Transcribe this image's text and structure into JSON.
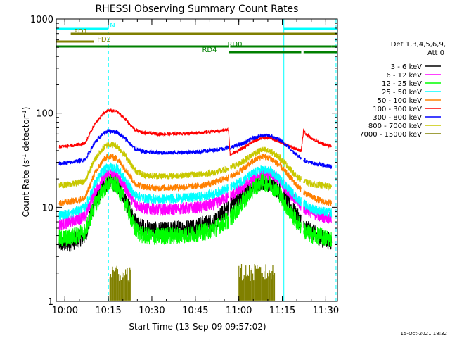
{
  "chart_data": {
    "type": "line",
    "title": "RHESSI Observing Summary Count Rates",
    "xlabel": "Start Time (13-Sep-09 09:57:02)",
    "ylabel_parts": [
      "Count Rate (s",
      "-1",
      " detector",
      "-1",
      ")"
    ],
    "y_scale": "log",
    "ylim": [
      1,
      1000
    ],
    "xlim_minutes": [
      0,
      97
    ],
    "x_ticks": [
      "10:00",
      "10:15",
      "10:30",
      "10:45",
      "11:00",
      "11:15",
      "11:30"
    ],
    "x_tick_minutes": [
      2.97,
      17.97,
      32.97,
      47.97,
      62.97,
      77.97,
      92.97
    ],
    "y_tick_labels": [
      "1",
      "10",
      "100",
      "1000"
    ],
    "y_tick_values": [
      1,
      10,
      100,
      1000
    ],
    "legend_title_line1": "Det 1,3,4,5,6,9,",
    "legend_title_line2": "Att 0",
    "legend_placement": "right",
    "night_boundaries_minutes": [
      0,
      18.0,
      78.5,
      96.5
    ],
    "data_gaps_minutes": [
      [
        59.4,
        60.0
      ],
      [
        84.5,
        85.3
      ]
    ],
    "series": [
      {
        "name": "3 - 6 keV",
        "color": "#000000",
        "values_at": [
          [
            1,
            4
          ],
          [
            5,
            4.2
          ],
          [
            10,
            5
          ],
          [
            13,
            11
          ],
          [
            16,
            16
          ],
          [
            18,
            19
          ],
          [
            21,
            18
          ],
          [
            24,
            12
          ],
          [
            27,
            7
          ],
          [
            30,
            6
          ],
          [
            35,
            5.6
          ],
          [
            40,
            5.8
          ],
          [
            45,
            6
          ],
          [
            50,
            6.5
          ],
          [
            55,
            7
          ],
          [
            58,
            9
          ],
          [
            60,
            10.5
          ],
          [
            64,
            13
          ],
          [
            68,
            17
          ],
          [
            71,
            19
          ],
          [
            74,
            18
          ],
          [
            77,
            15
          ],
          [
            80,
            11
          ],
          [
            83,
            8
          ],
          [
            86,
            6
          ],
          [
            89,
            5.2
          ],
          [
            92,
            4.6
          ],
          [
            95,
            4.3
          ]
        ]
      },
      {
        "name": "6 - 12 keV",
        "color": "#ff00ff",
        "values_at": [
          [
            1,
            6.5
          ],
          [
            5,
            7
          ],
          [
            10,
            8
          ],
          [
            13,
            14
          ],
          [
            16,
            20
          ],
          [
            18,
            23
          ],
          [
            21,
            22
          ],
          [
            24,
            16
          ],
          [
            27,
            11
          ],
          [
            30,
            9.8
          ],
          [
            35,
            9.4
          ],
          [
            40,
            9.5
          ],
          [
            45,
            9.8
          ],
          [
            50,
            10
          ],
          [
            55,
            11
          ],
          [
            58,
            12.5
          ],
          [
            60,
            13
          ],
          [
            64,
            16
          ],
          [
            68,
            20
          ],
          [
            71,
            23
          ],
          [
            74,
            22
          ],
          [
            77,
            19
          ],
          [
            80,
            15
          ],
          [
            83,
            11.5
          ],
          [
            86,
            9.5
          ],
          [
            89,
            8.5
          ],
          [
            92,
            8
          ],
          [
            95,
            7.6
          ]
        ]
      },
      {
        "name": "12 - 25 keV",
        "color": "#00ff00",
        "values_at": [
          [
            1,
            4.6
          ],
          [
            5,
            4.8
          ],
          [
            10,
            5.5
          ],
          [
            13,
            10
          ],
          [
            16,
            15
          ],
          [
            18,
            18
          ],
          [
            21,
            17
          ],
          [
            24,
            11
          ],
          [
            27,
            6
          ],
          [
            30,
            5
          ],
          [
            35,
            4.9
          ],
          [
            40,
            5
          ],
          [
            45,
            5.1
          ],
          [
            50,
            5.4
          ],
          [
            55,
            6
          ],
          [
            58,
            7
          ],
          [
            60,
            7.5
          ],
          [
            64,
            11
          ],
          [
            68,
            16
          ],
          [
            71,
            18.5
          ],
          [
            74,
            17.5
          ],
          [
            77,
            14
          ],
          [
            80,
            9.5
          ],
          [
            83,
            7
          ],
          [
            86,
            5.5
          ],
          [
            89,
            5
          ],
          [
            92,
            4.8
          ],
          [
            95,
            4.6
          ]
        ]
      },
      {
        "name": "25 - 50 keV",
        "color": "#00ffff",
        "values_at": [
          [
            1,
            8.2
          ],
          [
            5,
            8.6
          ],
          [
            10,
            10
          ],
          [
            13,
            17
          ],
          [
            16,
            24
          ],
          [
            18,
            27
          ],
          [
            21,
            26
          ],
          [
            24,
            19
          ],
          [
            27,
            13.5
          ],
          [
            30,
            12.5
          ],
          [
            35,
            12.2
          ],
          [
            40,
            12.4
          ],
          [
            45,
            12.6
          ],
          [
            50,
            13
          ],
          [
            55,
            14
          ],
          [
            58,
            15.5
          ],
          [
            60,
            16
          ],
          [
            64,
            19
          ],
          [
            68,
            23
          ],
          [
            71,
            25
          ],
          [
            74,
            24
          ],
          [
            77,
            20
          ],
          [
            80,
            16
          ],
          [
            83,
            12.5
          ],
          [
            86,
            10.5
          ],
          [
            89,
            9.5
          ],
          [
            92,
            9
          ],
          [
            95,
            8.7
          ]
        ]
      },
      {
        "name": "50 - 100 keV",
        "color": "#ff8000",
        "values_at": [
          [
            1,
            11
          ],
          [
            5,
            11.5
          ],
          [
            10,
            12.5
          ],
          [
            13,
            22
          ],
          [
            16,
            31
          ],
          [
            18,
            35
          ],
          [
            21,
            33
          ],
          [
            24,
            25
          ],
          [
            27,
            18
          ],
          [
            30,
            16.5
          ],
          [
            35,
            16
          ],
          [
            40,
            16.2
          ],
          [
            45,
            16.5
          ],
          [
            50,
            17
          ],
          [
            55,
            18.5
          ],
          [
            58,
            20
          ],
          [
            60,
            21
          ],
          [
            64,
            25
          ],
          [
            68,
            31
          ],
          [
            71,
            35
          ],
          [
            74,
            33
          ],
          [
            77,
            28
          ],
          [
            80,
            22
          ],
          [
            83,
            17
          ],
          [
            86,
            14
          ],
          [
            89,
            12.5
          ],
          [
            92,
            11.5
          ],
          [
            95,
            11
          ]
        ]
      },
      {
        "name": "100 - 300 keV",
        "color": "#ff0000",
        "values_at": [
          [
            1,
            44
          ],
          [
            5,
            45
          ],
          [
            10,
            48
          ],
          [
            13,
            74
          ],
          [
            16,
            98
          ],
          [
            18,
            107
          ],
          [
            21,
            104
          ],
          [
            24,
            85
          ],
          [
            27,
            67
          ],
          [
            30,
            62
          ],
          [
            35,
            60
          ],
          [
            40,
            60
          ],
          [
            45,
            61
          ],
          [
            50,
            62
          ],
          [
            55,
            64
          ],
          [
            58,
            66
          ],
          [
            59.4,
            67
          ],
          [
            60,
            36
          ],
          [
            64,
            42
          ],
          [
            68,
            50
          ],
          [
            71,
            55
          ],
          [
            74,
            54
          ],
          [
            77,
            50
          ],
          [
            80,
            45
          ],
          [
            83,
            41
          ],
          [
            84.5,
            40
          ],
          [
            85.3,
            66
          ],
          [
            86,
            60
          ],
          [
            89,
            52
          ],
          [
            92,
            47
          ],
          [
            95,
            44
          ]
        ]
      },
      {
        "name": "300 - 800 keV",
        "color": "#0000ff",
        "values_at": [
          [
            1,
            29
          ],
          [
            5,
            30
          ],
          [
            10,
            32
          ],
          [
            13,
            47
          ],
          [
            16,
            60
          ],
          [
            18,
            65
          ],
          [
            21,
            63
          ],
          [
            24,
            53
          ],
          [
            27,
            42
          ],
          [
            30,
            39
          ],
          [
            35,
            38
          ],
          [
            40,
            38
          ],
          [
            45,
            38.5
          ],
          [
            50,
            39
          ],
          [
            55,
            41
          ],
          [
            58,
            42
          ],
          [
            60,
            43
          ],
          [
            64,
            47
          ],
          [
            68,
            54
          ],
          [
            71,
            58
          ],
          [
            74,
            57
          ],
          [
            77,
            52
          ],
          [
            80,
            44
          ],
          [
            83,
            36
          ],
          [
            86,
            31
          ],
          [
            89,
            29
          ],
          [
            92,
            28
          ],
          [
            95,
            27
          ]
        ]
      },
      {
        "name": "800 - 7000 keV",
        "color": "#c8c800",
        "values_at": [
          [
            1,
            17
          ],
          [
            5,
            17.5
          ],
          [
            10,
            19
          ],
          [
            13,
            31
          ],
          [
            16,
            42
          ],
          [
            18,
            47
          ],
          [
            21,
            45
          ],
          [
            24,
            35
          ],
          [
            27,
            25
          ],
          [
            30,
            22
          ],
          [
            35,
            21.5
          ],
          [
            40,
            21.5
          ],
          [
            45,
            22
          ],
          [
            50,
            22.5
          ],
          [
            55,
            23.5
          ],
          [
            58,
            25
          ],
          [
            60,
            26
          ],
          [
            64,
            30
          ],
          [
            68,
            37
          ],
          [
            71,
            41
          ],
          [
            74,
            39
          ],
          [
            77,
            34
          ],
          [
            80,
            27
          ],
          [
            83,
            21
          ],
          [
            86,
            18.5
          ],
          [
            89,
            17.5
          ],
          [
            92,
            17
          ],
          [
            95,
            16.5
          ]
        ]
      },
      {
        "name": "7000 - 15000 keV",
        "color": "#808000",
        "values_at": [
          [
            18.5,
            1.02
          ],
          [
            26,
            1.02
          ],
          [
            63,
            1.02
          ],
          [
            75.5,
            1.02
          ]
        ]
      }
    ],
    "attenuator_bars": [
      {
        "label": "N",
        "color": "#00ffff",
        "segments_minutes": [
          [
            0,
            18.0
          ],
          [
            78.5,
            97
          ]
        ]
      },
      {
        "label": "FD1",
        "color": "#808000",
        "segments_minutes": [
          [
            5,
            97
          ]
        ]
      },
      {
        "label": "FD2",
        "color": "#808000",
        "segments_minutes": [
          [
            0,
            13
          ]
        ]
      },
      {
        "label": "RD0",
        "color": "#008000",
        "segments_minutes": [
          [
            0,
            59.4
          ],
          [
            60,
            95
          ],
          [
            95,
            97
          ]
        ]
      },
      {
        "label": "RD4",
        "color": "#008000",
        "segments_minutes": [
          [
            59.5,
            84.5
          ],
          [
            85.3,
            97
          ]
        ]
      }
    ]
  },
  "footer": {
    "timestamp": "15-Oct-2021 18:32"
  }
}
